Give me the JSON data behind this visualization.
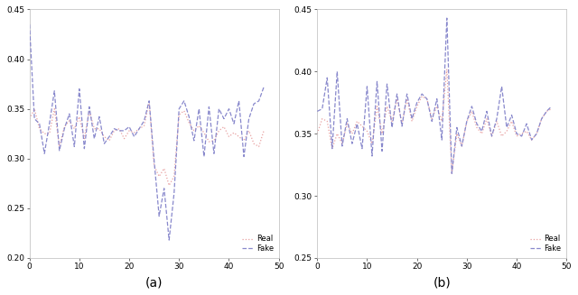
{
  "real_a": [
    0.34,
    0.35,
    0.33,
    0.325,
    0.325,
    0.35,
    0.312,
    0.332,
    0.338,
    0.33,
    0.342,
    0.32,
    0.348,
    0.33,
    0.33,
    0.322,
    0.318,
    0.328,
    0.33,
    0.32,
    0.328,
    0.326,
    0.33,
    0.333,
    0.357,
    0.293,
    0.282,
    0.29,
    0.273,
    0.282,
    0.344,
    0.348,
    0.336,
    0.328,
    0.333,
    0.326,
    0.317,
    0.318,
    0.328,
    0.332,
    0.322,
    0.326,
    0.322,
    0.318,
    0.328,
    0.315,
    0.312,
    0.328
  ],
  "fake_a": [
    0.435,
    0.34,
    0.335,
    0.305,
    0.335,
    0.368,
    0.308,
    0.33,
    0.345,
    0.312,
    0.37,
    0.31,
    0.352,
    0.32,
    0.342,
    0.315,
    0.322,
    0.33,
    0.328,
    0.328,
    0.332,
    0.322,
    0.33,
    0.338,
    0.358,
    0.298,
    0.242,
    0.27,
    0.218,
    0.265,
    0.35,
    0.358,
    0.342,
    0.318,
    0.35,
    0.302,
    0.352,
    0.305,
    0.35,
    0.34,
    0.35,
    0.335,
    0.358,
    0.302,
    0.34,
    0.355,
    0.358,
    0.372
  ],
  "real_b": [
    0.35,
    0.362,
    0.36,
    0.338,
    0.35,
    0.342,
    0.358,
    0.35,
    0.36,
    0.356,
    0.352,
    0.342,
    0.372,
    0.35,
    0.372,
    0.36,
    0.378,
    0.358,
    0.378,
    0.36,
    0.372,
    0.38,
    0.378,
    0.362,
    0.372,
    0.36,
    0.402,
    0.318,
    0.35,
    0.34,
    0.36,
    0.368,
    0.355,
    0.35,
    0.362,
    0.348,
    0.36,
    0.348,
    0.352,
    0.36,
    0.348,
    0.35,
    0.352,
    0.345,
    0.35,
    0.362,
    0.368,
    0.37
  ],
  "fake_b": [
    0.368,
    0.37,
    0.395,
    0.338,
    0.4,
    0.34,
    0.362,
    0.342,
    0.358,
    0.338,
    0.388,
    0.332,
    0.392,
    0.336,
    0.39,
    0.355,
    0.382,
    0.356,
    0.382,
    0.362,
    0.375,
    0.382,
    0.378,
    0.36,
    0.378,
    0.345,
    0.443,
    0.318,
    0.355,
    0.34,
    0.36,
    0.372,
    0.358,
    0.352,
    0.368,
    0.348,
    0.362,
    0.388,
    0.355,
    0.365,
    0.35,
    0.348,
    0.358,
    0.345,
    0.35,
    0.362,
    0.368,
    0.372
  ],
  "ylim_a": [
    0.2,
    0.45
  ],
  "ylim_b": [
    0.25,
    0.45
  ],
  "yticks_a": [
    0.2,
    0.25,
    0.3,
    0.35,
    0.4,
    0.45
  ],
  "yticks_b": [
    0.25,
    0.3,
    0.35,
    0.4,
    0.45
  ],
  "xlim": [
    0,
    50
  ],
  "xticks": [
    0,
    10,
    20,
    30,
    40,
    50
  ],
  "real_color": "#e8a0a0",
  "fake_color": "#8888cc",
  "label_a": "(a)",
  "label_b": "(b)",
  "legend_real": "Real",
  "legend_fake": "Fake",
  "figsize": [
    6.4,
    3.27
  ],
  "dpi": 100
}
